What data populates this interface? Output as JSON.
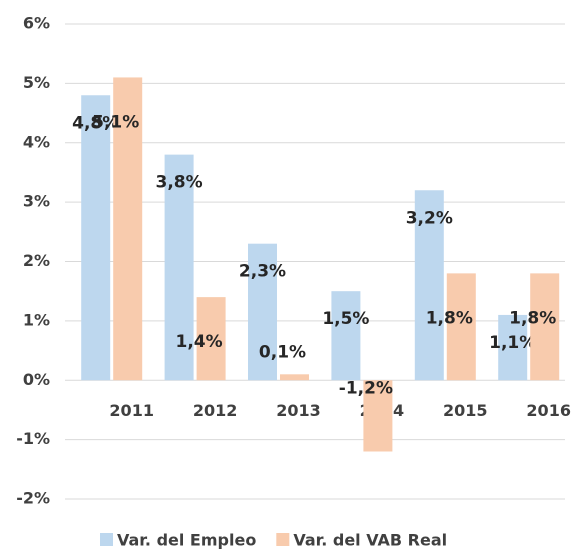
{
  "chart_data": {
    "type": "bar",
    "categories": [
      "2011",
      "2012",
      "2013",
      "2014",
      "2015",
      "2016"
    ],
    "series": [
      {
        "name": "Var. del Empleo",
        "color": "#bdd7ee",
        "values": [
          4.8,
          3.8,
          2.3,
          1.5,
          3.2,
          1.1
        ],
        "value_labels": [
          "4,8%",
          "3,8%",
          "2,3%",
          "1,5%",
          "3,2%",
          "1,1%"
        ]
      },
      {
        "name": "Var. del VAB Real",
        "color": "#f8cbad",
        "values": [
          5.1,
          1.4,
          0.1,
          -1.2,
          1.8,
          1.8
        ],
        "value_labels": [
          "5,1%",
          "1,4%",
          "0,1%",
          "-1,2%",
          "1,8%",
          "1,8%"
        ]
      }
    ],
    "ylim": [
      -2,
      6
    ],
    "yticks": [
      {
        "value": -2,
        "label": "-2%"
      },
      {
        "value": -1,
        "label": "-1%"
      },
      {
        "value": 0,
        "label": "0%"
      },
      {
        "value": 1,
        "label": "1%"
      },
      {
        "value": 2,
        "label": "2%"
      },
      {
        "value": 3,
        "label": "3%"
      },
      {
        "value": 4,
        "label": "4%"
      },
      {
        "value": 5,
        "label": "5%"
      },
      {
        "value": 6,
        "label": "6%"
      }
    ],
    "grid": true,
    "legend": "bottom"
  }
}
